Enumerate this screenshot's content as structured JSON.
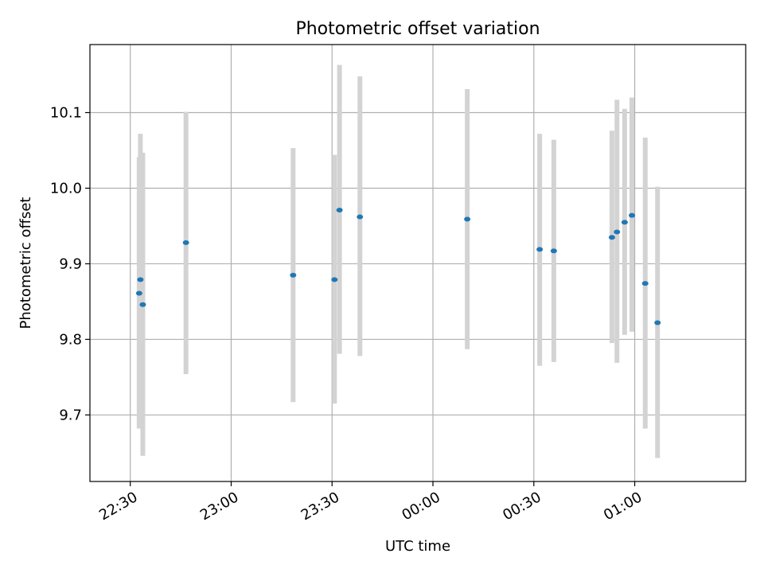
{
  "chart_data": {
    "type": "scatter",
    "title": "Photometric offset variation",
    "xlabel": "UTC time",
    "ylabel": "Photometric offset",
    "xlim": [
      -10,
      315
    ],
    "ylim": [
      9.612,
      10.19
    ],
    "x_unit": "minutes after 22:20 UTC",
    "x_ticks": [
      {
        "value": 10,
        "label": "22:30"
      },
      {
        "value": 60,
        "label": "23:00"
      },
      {
        "value": 110,
        "label": "23:30"
      },
      {
        "value": 160,
        "label": "00:00"
      },
      {
        "value": 210,
        "label": "00:30"
      },
      {
        "value": 260,
        "label": "01:00"
      }
    ],
    "y_ticks": [
      {
        "value": 9.7,
        "label": "9.7"
      },
      {
        "value": 9.8,
        "label": "9.8"
      },
      {
        "value": 9.9,
        "label": "9.9"
      },
      {
        "value": 10.0,
        "label": "10.0"
      },
      {
        "value": 10.1,
        "label": "10.1"
      }
    ],
    "grid": true,
    "marker_color": "#1f77b4",
    "errorbar_color": "#d3d3d3",
    "points": [
      {
        "x": 14.4,
        "y": 9.861,
        "ylow": 9.682,
        "yhigh": 10.041
      },
      {
        "x": 15.0,
        "y": 9.879,
        "ylow": 9.682,
        "yhigh": 10.072
      },
      {
        "x": 16.2,
        "y": 9.846,
        "ylow": 9.646,
        "yhigh": 10.047
      },
      {
        "x": 37.6,
        "y": 9.928,
        "ylow": 9.754,
        "yhigh": 10.101
      },
      {
        "x": 90.7,
        "y": 9.885,
        "ylow": 9.717,
        "yhigh": 10.053
      },
      {
        "x": 111.2,
        "y": 9.879,
        "ylow": 9.715,
        "yhigh": 10.044
      },
      {
        "x": 113.7,
        "y": 9.971,
        "ylow": 9.781,
        "yhigh": 10.163
      },
      {
        "x": 123.8,
        "y": 9.962,
        "ylow": 9.778,
        "yhigh": 10.148
      },
      {
        "x": 177.0,
        "y": 9.959,
        "ylow": 9.787,
        "yhigh": 10.131
      },
      {
        "x": 212.9,
        "y": 9.919,
        "ylow": 9.765,
        "yhigh": 10.072
      },
      {
        "x": 219.9,
        "y": 9.917,
        "ylow": 9.77,
        "yhigh": 10.064
      },
      {
        "x": 248.7,
        "y": 9.935,
        "ylow": 9.795,
        "yhigh": 10.076
      },
      {
        "x": 251.2,
        "y": 9.942,
        "ylow": 9.769,
        "yhigh": 10.117
      },
      {
        "x": 255.0,
        "y": 9.955,
        "ylow": 9.806,
        "yhigh": 10.105
      },
      {
        "x": 258.6,
        "y": 9.964,
        "ylow": 9.81,
        "yhigh": 10.12
      },
      {
        "x": 265.2,
        "y": 9.874,
        "ylow": 9.682,
        "yhigh": 10.067
      },
      {
        "x": 271.3,
        "y": 9.822,
        "ylow": 9.643,
        "yhigh": 10.002
      }
    ]
  }
}
